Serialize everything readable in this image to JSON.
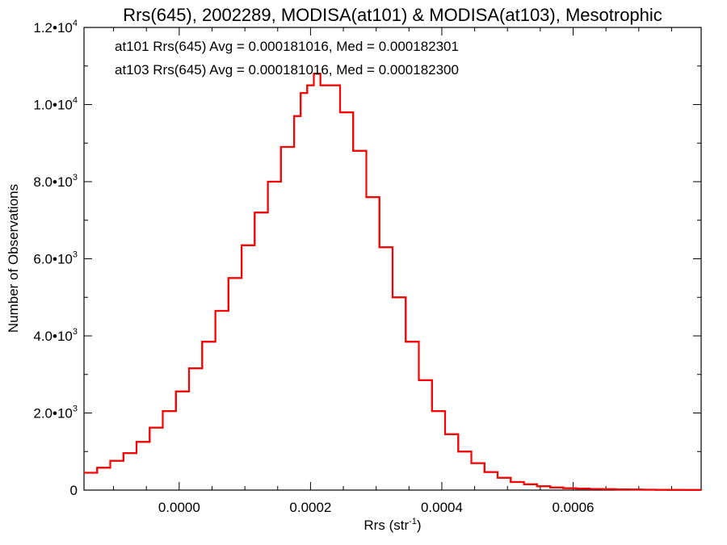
{
  "chart_data": {
    "type": "line",
    "title": "Rrs(645), 2002289, MODISA(at101) & MODISA(at103), Mesotrophic",
    "xlabel_main": "Rrs (str",
    "xlabel_sup": "-1",
    "xlabel_close": ")",
    "ylabel": "Number of Observations",
    "xlim": [
      -0.000145,
      0.000795
    ],
    "ylim": [
      0,
      12000
    ],
    "xticks": [
      {
        "value": 0.0,
        "label": "0.0000"
      },
      {
        "value": 0.0002,
        "label": "0.0002"
      },
      {
        "value": 0.0004,
        "label": "0.0004"
      },
      {
        "value": 0.0006,
        "label": "0.0006"
      }
    ],
    "yticks": [
      {
        "value": 0,
        "mant": "0",
        "exp": ""
      },
      {
        "value": 2000,
        "mant": "2.0•10",
        "exp": "3"
      },
      {
        "value": 4000,
        "mant": "4.0•10",
        "exp": "3"
      },
      {
        "value": 6000,
        "mant": "6.0•10",
        "exp": "3"
      },
      {
        "value": 8000,
        "mant": "8.0•10",
        "exp": "3"
      },
      {
        "value": 10000,
        "mant": "1.0•10",
        "exp": "4"
      },
      {
        "value": 12000,
        "mant": "1.2•10",
        "exp": "4"
      }
    ],
    "annotations": [
      {
        "text": "at101 Rrs(645) Avg = 0.000181016, Med = 0.000182301",
        "color": "#000000"
      },
      {
        "text": "at103 Rrs(645) Avg = 0.000181016, Med = 0.000182300",
        "color": "#ff0000"
      }
    ],
    "series": [
      {
        "color": "#000000",
        "x": [
          -0.000145,
          -0.000125,
          -0.000105,
          -8.5e-05,
          -6.5e-05,
          -4.5e-05,
          -2.5e-05,
          -5e-06,
          1.5e-05,
          3.5e-05,
          5.5e-05,
          7.5e-05,
          9.5e-05,
          0.000115,
          0.000135,
          0.000155,
          0.000175,
          0.000185,
          0.000195,
          0.000205,
          0.000215,
          0.000225,
          0.000245,
          0.000265,
          0.000285,
          0.000305,
          0.000325,
          0.000345,
          0.000365,
          0.000385,
          0.000405,
          0.000425,
          0.000445,
          0.000465,
          0.000485,
          0.000505,
          0.000525,
          0.000545,
          0.000565,
          0.000585,
          0.000605,
          0.000625,
          0.000645,
          0.000665,
          0.000685,
          0.000705,
          0.000725,
          0.000745,
          0.000765,
          0.000795
        ],
        "y": [
          450,
          580,
          760,
          960,
          1250,
          1620,
          2050,
          2560,
          3160,
          3850,
          4650,
          5500,
          6350,
          7200,
          8000,
          8900,
          9700,
          10300,
          10500,
          10800,
          10500,
          10500,
          9800,
          8800,
          7600,
          6300,
          5000,
          3850,
          2850,
          2050,
          1450,
          1000,
          700,
          470,
          320,
          210,
          150,
          100,
          70,
          50,
          40,
          30,
          24,
          18,
          14,
          11,
          8,
          6,
          4,
          3
        ]
      },
      {
        "color": "#ff0000",
        "x": [
          -0.000145,
          -0.000125,
          -0.000105,
          -8.5e-05,
          -6.5e-05,
          -4.5e-05,
          -2.5e-05,
          -5e-06,
          1.5e-05,
          3.5e-05,
          5.5e-05,
          7.5e-05,
          9.5e-05,
          0.000115,
          0.000135,
          0.000155,
          0.000175,
          0.000185,
          0.000195,
          0.000205,
          0.000215,
          0.000225,
          0.000245,
          0.000265,
          0.000285,
          0.000305,
          0.000325,
          0.000345,
          0.000365,
          0.000385,
          0.000405,
          0.000425,
          0.000445,
          0.000465,
          0.000485,
          0.000505,
          0.000525,
          0.000545,
          0.000565,
          0.000585,
          0.000605,
          0.000625,
          0.000645,
          0.000665,
          0.000685,
          0.000705,
          0.000725,
          0.000745,
          0.000765,
          0.000795
        ],
        "y": [
          450,
          580,
          760,
          960,
          1250,
          1620,
          2050,
          2560,
          3160,
          3850,
          4650,
          5500,
          6350,
          7200,
          8000,
          8900,
          9700,
          10300,
          10500,
          10800,
          10500,
          10500,
          9800,
          8800,
          7600,
          6300,
          5000,
          3850,
          2850,
          2050,
          1450,
          1000,
          700,
          470,
          320,
          210,
          150,
          100,
          70,
          50,
          40,
          30,
          24,
          18,
          14,
          11,
          8,
          6,
          4,
          3
        ]
      }
    ]
  }
}
